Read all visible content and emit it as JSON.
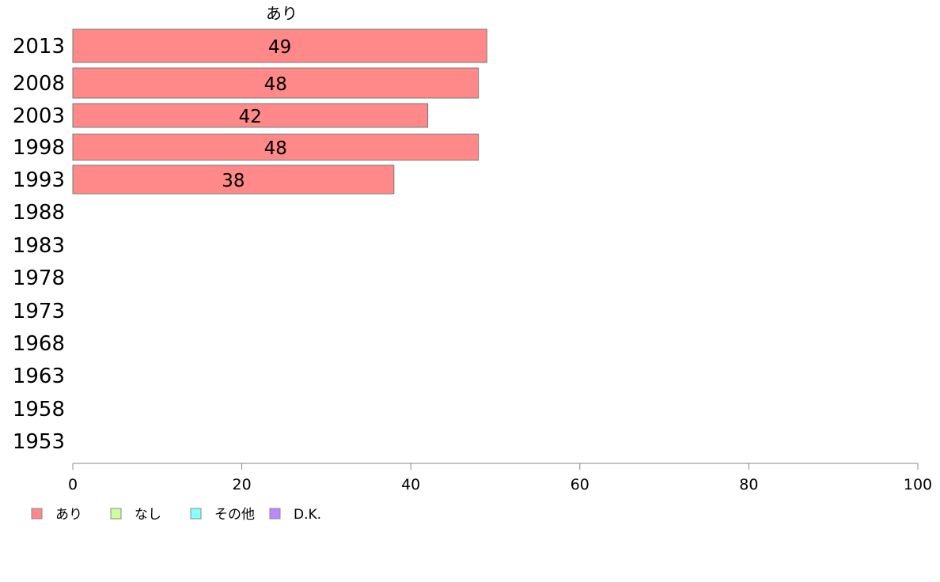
{
  "chart_data": {
    "type": "bar",
    "orientation": "horizontal",
    "column_header": "あり",
    "categories": [
      "2013",
      "2008",
      "2003",
      "1998",
      "1993",
      "1988",
      "1983",
      "1978",
      "1973",
      "1968",
      "1963",
      "1958",
      "1953"
    ],
    "series": [
      {
        "name": "あり",
        "values": [
          49,
          48,
          42,
          48,
          38,
          null,
          null,
          null,
          null,
          null,
          null,
          null,
          null
        ]
      }
    ],
    "value_labels": [
      "49",
      "48",
      "42",
      "48",
      "38"
    ],
    "x_ticks": [
      0,
      20,
      40,
      60,
      80,
      100
    ],
    "xlim": [
      0,
      100
    ],
    "legend": {
      "placement": "bottom-left",
      "items": [
        {
          "label": "あり",
          "color": "#ff8888"
        },
        {
          "label": "なし",
          "color": "#ccff99"
        },
        {
          "label": "その他",
          "color": "#88ffff"
        },
        {
          "label": "D.K.",
          "color": "#bb88ff"
        }
      ]
    },
    "grid": false,
    "colors": {
      "bar_fill": "#ff8888",
      "bar_stroke": "#7a7a7a",
      "axis": "#888888"
    }
  }
}
